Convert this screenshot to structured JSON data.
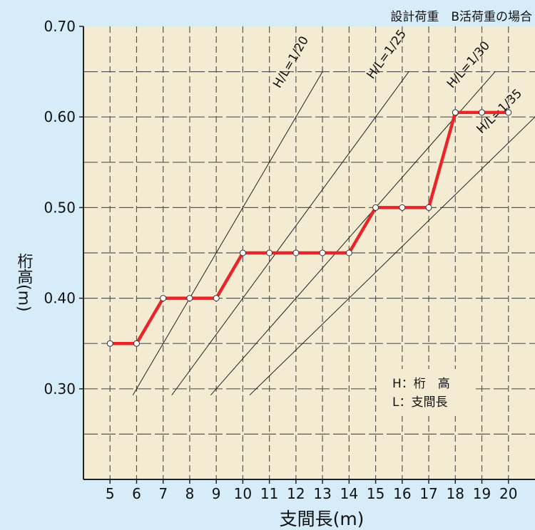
{
  "chart_data": {
    "type": "line",
    "title": "設計荷重　B活荷重の場合",
    "xlabel": "支間長(m)",
    "ylabel": "桁高(m)",
    "xlim": [
      4,
      21
    ],
    "ylim": [
      0.2,
      0.7
    ],
    "x_ticks": [
      "5",
      "6",
      "7",
      "8",
      "9",
      "10",
      "11",
      "12",
      "13",
      "14",
      "15",
      "16",
      "17",
      "18",
      "19",
      "20"
    ],
    "y_ticks": [
      "0.30",
      "0.40",
      "0.50",
      "0.60",
      "0.70"
    ],
    "grid": true,
    "series": [
      {
        "color": "#e8262a",
        "x": [
          5,
          6,
          7,
          8,
          9,
          10,
          11,
          12,
          13,
          14,
          15,
          16,
          17,
          18,
          19,
          20
        ],
        "y": [
          0.35,
          0.35,
          0.4,
          0.4,
          0.4,
          0.45,
          0.45,
          0.45,
          0.45,
          0.45,
          0.5,
          0.5,
          0.5,
          0.605,
          0.605,
          0.605
        ]
      }
    ],
    "ratio_lines": [
      {
        "label": "H/L=1/20",
        "ratio": 20
      },
      {
        "label": "H/L=1/25",
        "ratio": 25
      },
      {
        "label": "H/L=1/30",
        "ratio": 30
      },
      {
        "label": "H/L=1/35",
        "ratio": 35
      }
    ],
    "legend_box": {
      "line1": "H：桁　高",
      "line2": "L：支間長"
    }
  },
  "colors": {
    "background": "#d6ecf8",
    "plot_area": "#f4ecd2",
    "series": "#e8262a",
    "grid": "#555555"
  }
}
